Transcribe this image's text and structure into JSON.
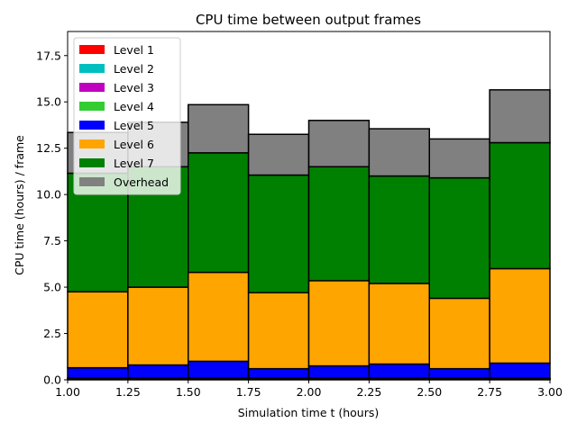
{
  "chart_data": {
    "type": "bar",
    "stacked": true,
    "title": "CPU time between output frames",
    "xlabel": "Simulation time t (hours)",
    "ylabel": "CPU time (hours) / frame",
    "xlim": [
      1.0,
      3.0
    ],
    "ylim": [
      0,
      18.8
    ],
    "x_ticks": [
      "1.00",
      "1.25",
      "1.50",
      "1.75",
      "2.00",
      "2.25",
      "2.50",
      "2.75",
      "3.00"
    ],
    "y_ticks": [
      "0.0",
      "2.5",
      "5.0",
      "7.5",
      "10.0",
      "12.5",
      "15.0",
      "17.5"
    ],
    "bin_edges": [
      1.0,
      1.25,
      1.5,
      1.75,
      2.0,
      2.25,
      2.5,
      2.75,
      3.0
    ],
    "legend_position": "upper-left",
    "series": [
      {
        "name": "Level 1",
        "color": "#ff0000",
        "values": [
          0.02,
          0.02,
          0.02,
          0.02,
          0.02,
          0.02,
          0.02,
          0.02
        ]
      },
      {
        "name": "Level 2",
        "color": "#00bfbf",
        "values": [
          0.02,
          0.02,
          0.02,
          0.02,
          0.02,
          0.02,
          0.02,
          0.02
        ]
      },
      {
        "name": "Level 3",
        "color": "#bf00bf",
        "values": [
          0.02,
          0.02,
          0.02,
          0.02,
          0.02,
          0.02,
          0.02,
          0.02
        ]
      },
      {
        "name": "Level 4",
        "color": "#33cc33",
        "values": [
          0.04,
          0.04,
          0.04,
          0.04,
          0.04,
          0.04,
          0.04,
          0.04
        ]
      },
      {
        "name": "Level 5",
        "color": "#0000ff",
        "values": [
          0.55,
          0.7,
          0.9,
          0.5,
          0.65,
          0.75,
          0.5,
          0.8
        ]
      },
      {
        "name": "Level 6",
        "color": "#ffa500",
        "values": [
          4.1,
          4.2,
          4.8,
          4.1,
          4.6,
          4.35,
          3.8,
          5.1
        ]
      },
      {
        "name": "Level 7",
        "color": "#008000",
        "values": [
          6.4,
          6.5,
          6.45,
          6.35,
          6.15,
          5.8,
          6.5,
          6.8
        ]
      },
      {
        "name": "Overhead",
        "color": "#808080",
        "values": [
          2.2,
          2.4,
          2.6,
          2.2,
          2.5,
          2.55,
          2.1,
          2.85
        ]
      }
    ]
  }
}
